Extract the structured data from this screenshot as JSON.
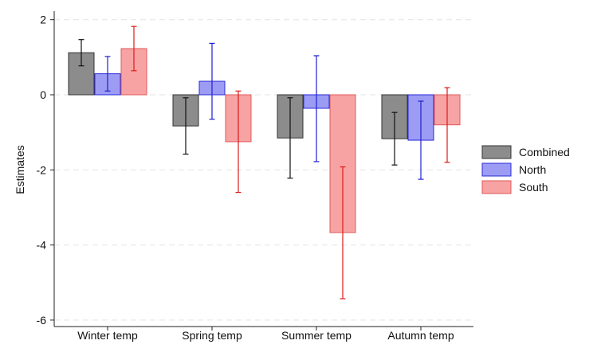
{
  "chart_data": {
    "type": "bar",
    "categories": [
      "Winter temp",
      "Spring temp",
      "Summer temp",
      "Autumn temp"
    ],
    "ylabel": "Estimates",
    "xlabel": "",
    "ylim": [
      -6.3,
      2.2
    ],
    "yticks": [
      -6,
      -4,
      -2,
      0,
      2
    ],
    "grid": true,
    "legend_position": "right",
    "series": [
      {
        "name": "Combined",
        "fill": "#8c8c8c",
        "stroke": "#333333",
        "err_color": "#111111",
        "values": [
          1.12,
          -0.83,
          -1.15,
          -1.17
        ],
        "ci_low": [
          0.77,
          -1.58,
          -2.22,
          -1.87
        ],
        "ci_high": [
          1.47,
          -0.08,
          -0.08,
          -0.47
        ]
      },
      {
        "name": "North",
        "fill": "#9c9cf4",
        "stroke": "#2a2ad8",
        "err_color": "#1f1fd0",
        "values": [
          0.56,
          0.36,
          -0.36,
          -1.21
        ],
        "ci_low": [
          0.1,
          -0.65,
          -1.78,
          -2.25
        ],
        "ci_high": [
          1.02,
          1.37,
          1.04,
          -0.17
        ]
      },
      {
        "name": "South",
        "fill": "#f7a3a3",
        "stroke": "#e05a5a",
        "err_color": "#dd1a1a",
        "values": [
          1.23,
          -1.25,
          -3.67,
          -0.8
        ],
        "ci_low": [
          0.64,
          -2.6,
          -5.43,
          -1.8
        ],
        "ci_high": [
          1.82,
          0.1,
          -1.92,
          0.19
        ]
      }
    ]
  }
}
